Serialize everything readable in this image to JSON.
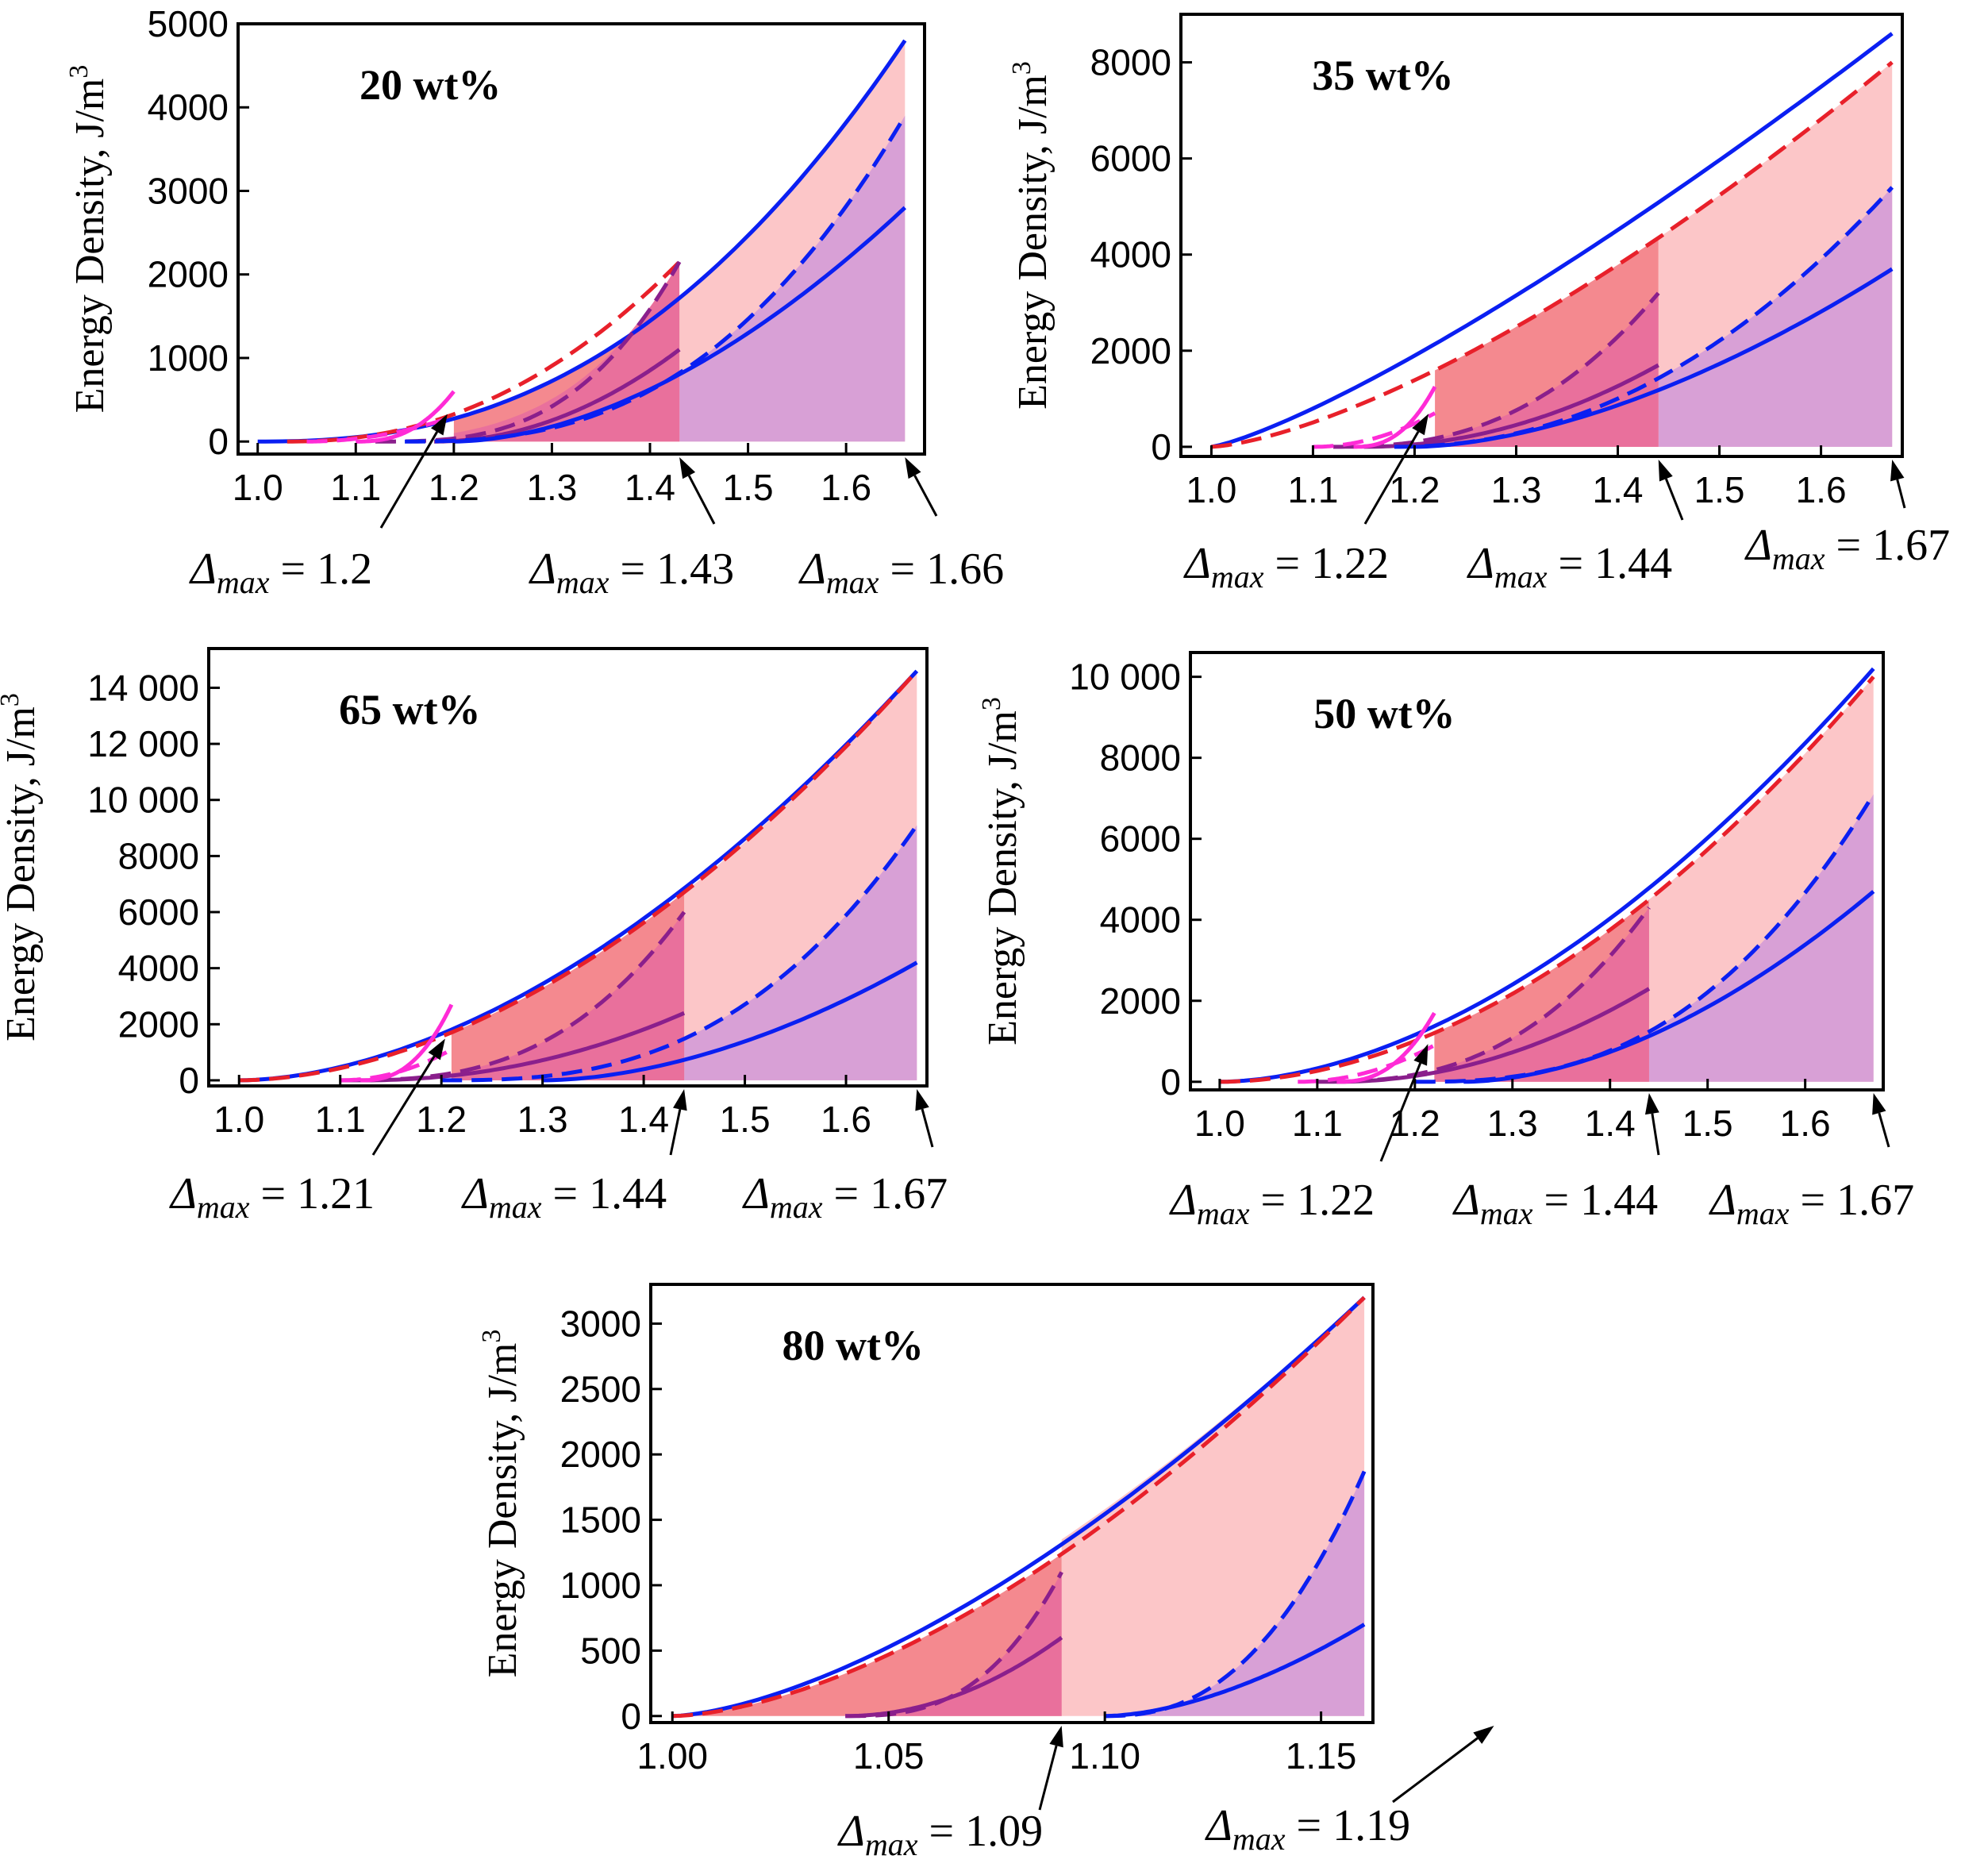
{
  "figure": {
    "ylabel": "Energy Density, J/m",
    "ylabel_sup": "3"
  },
  "colors": {
    "blue": "#0a1ff2",
    "red": "#e8202a",
    "purple": "#8a1f8c",
    "magenta": "#ff2bd6",
    "fill_light": "#fcc6c8",
    "fill_mid": "#f4898f",
    "fill_dark": "#e9709c",
    "fill_purple": "#d8a0d6"
  },
  "chart_data": [
    {
      "id": "p20",
      "type": "line",
      "title": "20 wt%",
      "xlabel": "",
      "ylabel": "Energy Density, J/m3",
      "xlim": [
        0.98,
        1.68
      ],
      "ylim": [
        -150,
        5000
      ],
      "xticks": [
        1.0,
        1.1,
        1.2,
        1.3,
        1.4,
        1.5,
        1.6
      ],
      "xtick_labels": [
        "1.0",
        "1.1",
        "1.2",
        "1.3",
        "1.4",
        "1.5",
        "1.6"
      ],
      "yticks": [
        0,
        1000,
        2000,
        3000,
        4000,
        5000
      ],
      "ytick_labels": [
        "0",
        "1000",
        "2000",
        "3000",
        "4000",
        "5000"
      ],
      "delta_max": [
        1.2,
        1.43,
        1.66
      ],
      "annotations": [
        "= 1.2",
        "= 1.43",
        "= 1.66"
      ],
      "fills": [
        {
          "c": "fill_light",
          "x0": 1.43,
          "x1": 1.66,
          "top": {
            "x0": 1.0,
            "x1": 1.66,
            "y1": 4800,
            "p": 2.4
          },
          "bot": {
            "y": 0
          }
        },
        {
          "c": "fill_purple",
          "x0": 1.43,
          "x1": 1.66,
          "top": {
            "x0": 1.15,
            "x1": 1.66,
            "y1": 3900,
            "p": 2.6
          },
          "bot": {
            "y": 0
          }
        },
        {
          "c": "fill_mid",
          "x0": 1.2,
          "x1": 1.43,
          "top": {
            "x0": 1.0,
            "x1": 1.66,
            "y1": 4800,
            "p": 2.4
          },
          "bot": {
            "y": 0
          }
        },
        {
          "c": "fill_dark",
          "x0": 1.2,
          "x1": 1.43,
          "top": {
            "x0": 1.0,
            "x1": 1.43,
            "y1": 2150,
            "p": 4
          },
          "bot": {
            "y": 0
          }
        }
      ],
      "series": [
        {
          "name": "upper-solid",
          "c": "blue",
          "dash": false,
          "x0": 1.0,
          "x1": 1.66,
          "y1": 4800,
          "p": 2.4
        },
        {
          "name": "red-dashed",
          "c": "red",
          "dash": true,
          "x0": 1.03,
          "x1": 1.43,
          "y1": 2150,
          "p": 2.2
        },
        {
          "name": "purple-dashed",
          "c": "purple",
          "dash": true,
          "x0": 1.12,
          "x1": 1.43,
          "y1": 2150,
          "p": 3
        },
        {
          "name": "purple-solid",
          "c": "purple",
          "dash": false,
          "x0": 1.18,
          "x1": 1.43,
          "y1": 1100,
          "p": 2
        },
        {
          "name": "blue-dashed",
          "c": "blue",
          "dash": true,
          "x0": 1.15,
          "x1": 1.66,
          "y1": 3900,
          "p": 2.6
        },
        {
          "name": "blue-solid",
          "c": "blue",
          "dash": false,
          "x0": 1.2,
          "x1": 1.66,
          "y1": 2800,
          "p": 1.8
        },
        {
          "name": "magenta-solid",
          "c": "magenta",
          "dash": false,
          "x0": 1.1,
          "x1": 1.2,
          "y1": 600,
          "p": 2.5
        },
        {
          "name": "magenta-dashed",
          "c": "magenta",
          "dash": true,
          "x0": 1.05,
          "x1": 1.2,
          "y1": 300,
          "p": 2
        }
      ]
    },
    {
      "id": "p35",
      "type": "line",
      "title": "35 wt%",
      "xlabel": "",
      "ylabel": "Energy Density, J/m3",
      "xlim": [
        0.97,
        1.68
      ],
      "ylim": [
        -200,
        9000
      ],
      "xticks": [
        1.0,
        1.1,
        1.2,
        1.3,
        1.4,
        1.5,
        1.6
      ],
      "xtick_labels": [
        "1.0",
        "1.1",
        "1.2",
        "1.3",
        "1.4",
        "1.5",
        "1.6"
      ],
      "yticks": [
        0,
        2000,
        4000,
        6000,
        8000
      ],
      "ytick_labels": [
        "0",
        "2000",
        "4000",
        "6000",
        "8000"
      ],
      "delta_max": [
        1.22,
        1.44,
        1.67
      ],
      "annotations": [
        "= 1.22",
        "= 1.44",
        "= 1.67"
      ],
      "fills": [
        {
          "c": "fill_light",
          "x0": 1.44,
          "x1": 1.67,
          "top": {
            "x0": 1.0,
            "x1": 1.67,
            "y1": 8000,
            "p": 1.45
          },
          "bot": {
            "y": 0
          }
        },
        {
          "c": "fill_purple",
          "x0": 1.44,
          "x1": 1.67,
          "top": {
            "x0": 1.18,
            "x1": 1.67,
            "y1": 5400,
            "p": 2.1
          },
          "bot": {
            "y": 0
          }
        },
        {
          "c": "fill_mid",
          "x0": 1.22,
          "x1": 1.44,
          "top": {
            "x0": 1.0,
            "x1": 1.67,
            "y1": 8000,
            "p": 1.45
          },
          "bot": {
            "y": 0
          }
        },
        {
          "c": "fill_dark",
          "x0": 1.22,
          "x1": 1.44,
          "top": {
            "x0": 1.12,
            "x1": 1.44,
            "y1": 3200,
            "p": 2.5
          },
          "bot": {
            "y": 0
          }
        }
      ],
      "series": [
        {
          "name": "upper-solid",
          "c": "blue",
          "dash": false,
          "x0": 1.0,
          "x1": 1.67,
          "y1": 8600,
          "p": 1.25
        },
        {
          "name": "red-dashed",
          "c": "red",
          "dash": true,
          "x0": 1.0,
          "x1": 1.67,
          "y1": 8000,
          "p": 1.45
        },
        {
          "name": "purple-dashed",
          "c": "purple",
          "dash": true,
          "x0": 1.12,
          "x1": 1.44,
          "y1": 3200,
          "p": 2.5
        },
        {
          "name": "purple-solid",
          "c": "purple",
          "dash": false,
          "x0": 1.15,
          "x1": 1.44,
          "y1": 1700,
          "p": 2
        },
        {
          "name": "blue-dashed",
          "c": "blue",
          "dash": true,
          "x0": 1.18,
          "x1": 1.67,
          "y1": 5400,
          "p": 2.1
        },
        {
          "name": "blue-solid",
          "c": "blue",
          "dash": false,
          "x0": 1.2,
          "x1": 1.67,
          "y1": 3700,
          "p": 1.7
        },
        {
          "name": "magenta-solid",
          "c": "magenta",
          "dash": false,
          "x0": 1.14,
          "x1": 1.22,
          "y1": 1250,
          "p": 2.5
        },
        {
          "name": "magenta-dashed",
          "c": "magenta",
          "dash": true,
          "x0": 1.1,
          "x1": 1.22,
          "y1": 700,
          "p": 2
        }
      ]
    },
    {
      "id": "p65",
      "type": "line",
      "title": "65 wt%",
      "xlabel": "",
      "ylabel": "Energy Density, J/m3",
      "xlim": [
        0.97,
        1.68
      ],
      "ylim": [
        -200,
        15400
      ],
      "xticks": [
        1.0,
        1.1,
        1.2,
        1.3,
        1.4,
        1.5,
        1.6
      ],
      "xtick_labels": [
        "1.0",
        "1.1",
        "1.2",
        "1.3",
        "1.4",
        "1.5",
        "1.6"
      ],
      "yticks": [
        0,
        2000,
        4000,
        6000,
        8000,
        10000,
        12000,
        14000
      ],
      "ytick_labels": [
        "0",
        "2000",
        "4000",
        "6000",
        "8000",
        "10 000",
        "12 000",
        "14 000"
      ],
      "delta_max": [
        1.21,
        1.44,
        1.67
      ],
      "annotations": [
        "= 1.21",
        "= 1.44",
        "= 1.67"
      ],
      "fills": [
        {
          "c": "fill_light",
          "x0": 1.44,
          "x1": 1.67,
          "top": {
            "x0": 1.0,
            "x1": 1.67,
            "y1": 14600,
            "p": 1.85
          },
          "bot": {
            "y": 0
          }
        },
        {
          "c": "fill_purple",
          "x0": 1.44,
          "x1": 1.67,
          "top": {
            "x0": 1.2,
            "x1": 1.67,
            "y1": 9100,
            "p": 2.7
          },
          "bot": {
            "y": 0
          }
        },
        {
          "c": "fill_mid",
          "x0": 1.21,
          "x1": 1.44,
          "top": {
            "x0": 1.0,
            "x1": 1.67,
            "y1": 14600,
            "p": 1.85
          },
          "bot": {
            "y": 0
          }
        },
        {
          "c": "fill_dark",
          "x0": 1.21,
          "x1": 1.44,
          "top": {
            "x0": 1.1,
            "x1": 1.44,
            "y1": 6000,
            "p": 2.8
          },
          "bot": {
            "y": 0
          }
        }
      ],
      "series": [
        {
          "name": "upper-solid",
          "c": "blue",
          "dash": false,
          "x0": 1.0,
          "x1": 1.67,
          "y1": 14600,
          "p": 1.8
        },
        {
          "name": "red-dashed",
          "c": "red",
          "dash": true,
          "x0": 1.0,
          "x1": 1.67,
          "y1": 14600,
          "p": 1.85
        },
        {
          "name": "purple-dashed",
          "c": "purple",
          "dash": true,
          "x0": 1.1,
          "x1": 1.44,
          "y1": 6000,
          "p": 2.8
        },
        {
          "name": "purple-solid",
          "c": "purple",
          "dash": false,
          "x0": 1.12,
          "x1": 1.44,
          "y1": 2400,
          "p": 2.1
        },
        {
          "name": "blue-dashed",
          "c": "blue",
          "dash": true,
          "x0": 1.2,
          "x1": 1.67,
          "y1": 9100,
          "p": 2.7
        },
        {
          "name": "blue-solid",
          "c": "blue",
          "dash": false,
          "x0": 1.3,
          "x1": 1.67,
          "y1": 4200,
          "p": 1.8
        },
        {
          "name": "magenta-solid",
          "c": "magenta",
          "dash": false,
          "x0": 1.12,
          "x1": 1.21,
          "y1": 2700,
          "p": 2.5
        },
        {
          "name": "magenta-dashed",
          "c": "magenta",
          "dash": true,
          "x0": 1.1,
          "x1": 1.21,
          "y1": 1100,
          "p": 2
        }
      ]
    },
    {
      "id": "p50",
      "type": "line",
      "title": "50 wt%",
      "xlabel": "",
      "ylabel": "Energy Density, J/m3",
      "xlim": [
        0.97,
        1.68
      ],
      "ylim": [
        -200,
        10600
      ],
      "xticks": [
        1.0,
        1.1,
        1.2,
        1.3,
        1.4,
        1.5,
        1.6
      ],
      "xtick_labels": [
        "1.0",
        "1.1",
        "1.2",
        "1.3",
        "1.4",
        "1.5",
        "1.6"
      ],
      "yticks": [
        0,
        2000,
        4000,
        6000,
        8000,
        10000
      ],
      "ytick_labels": [
        "0",
        "2000",
        "4000",
        "6000",
        "8000",
        "10 000"
      ],
      "delta_max": [
        1.22,
        1.44,
        1.67
      ],
      "annotations": [
        "= 1.22",
        "= 1.44",
        "= 1.67"
      ],
      "fills": [
        {
          "c": "fill_light",
          "x0": 1.44,
          "x1": 1.67,
          "top": {
            "x0": 1.0,
            "x1": 1.67,
            "y1": 10000,
            "p": 1.9
          },
          "bot": {
            "y": 0
          }
        },
        {
          "c": "fill_purple",
          "x0": 1.44,
          "x1": 1.67,
          "top": {
            "x0": 1.2,
            "x1": 1.67,
            "y1": 7100,
            "p": 2.6
          },
          "bot": {
            "y": 0
          }
        },
        {
          "c": "fill_mid",
          "x0": 1.22,
          "x1": 1.44,
          "top": {
            "x0": 1.0,
            "x1": 1.67,
            "y1": 10000,
            "p": 1.9
          },
          "bot": {
            "y": 0
          }
        },
        {
          "c": "fill_dark",
          "x0": 1.22,
          "x1": 1.44,
          "top": {
            "x0": 1.1,
            "x1": 1.44,
            "y1": 4300,
            "p": 2.6
          },
          "bot": {
            "y": 0
          }
        }
      ],
      "series": [
        {
          "name": "upper-solid",
          "c": "blue",
          "dash": false,
          "x0": 1.0,
          "x1": 1.67,
          "y1": 10200,
          "p": 1.8
        },
        {
          "name": "red-dashed",
          "c": "red",
          "dash": true,
          "x0": 1.0,
          "x1": 1.67,
          "y1": 10000,
          "p": 1.9
        },
        {
          "name": "purple-dashed",
          "c": "purple",
          "dash": true,
          "x0": 1.1,
          "x1": 1.44,
          "y1": 4300,
          "p": 2.6
        },
        {
          "name": "purple-solid",
          "c": "purple",
          "dash": false,
          "x0": 1.12,
          "x1": 1.44,
          "y1": 2300,
          "p": 2
        },
        {
          "name": "blue-dashed",
          "c": "blue",
          "dash": true,
          "x0": 1.2,
          "x1": 1.67,
          "y1": 7100,
          "p": 2.6
        },
        {
          "name": "blue-solid",
          "c": "blue",
          "dash": false,
          "x0": 1.25,
          "x1": 1.67,
          "y1": 4700,
          "p": 1.8
        },
        {
          "name": "magenta-solid",
          "c": "magenta",
          "dash": false,
          "x0": 1.12,
          "x1": 1.22,
          "y1": 1700,
          "p": 2.5
        },
        {
          "name": "magenta-dashed",
          "c": "magenta",
          "dash": true,
          "x0": 1.08,
          "x1": 1.22,
          "y1": 900,
          "p": 2
        }
      ]
    },
    {
      "id": "p80",
      "type": "line",
      "title": "80 wt%",
      "xlabel": "",
      "ylabel": "Energy Density, J/m3",
      "xlim": [
        0.995,
        1.162
      ],
      "ylim": [
        -50,
        3300
      ],
      "xticks": [
        1.0,
        1.05,
        1.1,
        1.15
      ],
      "xtick_labels": [
        "1.00",
        "1.05",
        "1.10",
        "1.15"
      ],
      "yticks": [
        0,
        500,
        1000,
        1500,
        2000,
        2500,
        3000
      ],
      "ytick_labels": [
        "0",
        "500",
        "1000",
        "1500",
        "2000",
        "2500",
        "3000"
      ],
      "delta_max": [
        1.09,
        1.19
      ],
      "annotations": [
        "= 1.09",
        "= 1.19"
      ],
      "fills": [
        {
          "c": "fill_light",
          "x0": 1.09,
          "x1": 1.16,
          "top": {
            "x0": 1.0,
            "x1": 1.16,
            "y1": 3200,
            "p": 1.5
          },
          "bot": {
            "y": 0
          }
        },
        {
          "c": "fill_purple",
          "x0": 1.1,
          "x1": 1.16,
          "top": {
            "x0": 1.1,
            "x1": 1.16,
            "y1": 1870,
            "p": 2.4
          },
          "bot": {
            "y": 0
          }
        },
        {
          "c": "fill_mid",
          "x0": 1.0,
          "x1": 1.09,
          "top": {
            "x0": 1.0,
            "x1": 1.16,
            "y1": 3200,
            "p": 1.65
          },
          "bot": {
            "y": 0
          }
        },
        {
          "c": "fill_dark",
          "x0": 1.04,
          "x1": 1.09,
          "top": {
            "x0": 1.04,
            "x1": 1.09,
            "y1": 1100,
            "p": 2.8
          },
          "bot": {
            "y": 0
          }
        }
      ],
      "series": [
        {
          "name": "upper-solid",
          "c": "blue",
          "dash": false,
          "x0": 1.0,
          "x1": 1.16,
          "y1": 3200,
          "p": 1.55
        },
        {
          "name": "red-dashed",
          "c": "red",
          "dash": true,
          "x0": 1.0,
          "x1": 1.16,
          "y1": 3200,
          "p": 1.65
        },
        {
          "name": "purple-dashed",
          "c": "purple",
          "dash": true,
          "x0": 1.04,
          "x1": 1.09,
          "y1": 1100,
          "p": 2.8
        },
        {
          "name": "purple-solid",
          "c": "purple",
          "dash": false,
          "x0": 1.04,
          "x1": 1.09,
          "y1": 600,
          "p": 2
        },
        {
          "name": "blue-dashed",
          "c": "blue",
          "dash": true,
          "x0": 1.1,
          "x1": 1.16,
          "y1": 1870,
          "p": 2.4
        },
        {
          "name": "blue-solid",
          "c": "blue",
          "dash": false,
          "x0": 1.1,
          "x1": 1.16,
          "y1": 700,
          "p": 1.7
        }
      ]
    }
  ]
}
